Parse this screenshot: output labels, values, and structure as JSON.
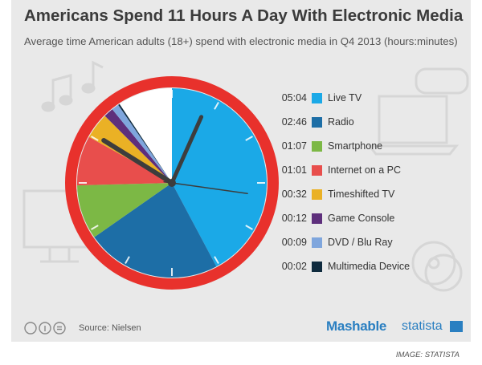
{
  "header": {
    "title": "Americans Spend 11 Hours A Day With Electronic Media",
    "subtitle": "Average time American adults (18+) spend with electronic media in Q4 2013 (hours:minutes)"
  },
  "chart_data": {
    "type": "pie",
    "title": "Americans Spend 11 Hours A Day With Electronic Media",
    "subtitle": "Average time American adults (18+) spend with electronic media in Q4 2013 (hours:minutes)",
    "unit": "minutes",
    "slices": [
      {
        "label": "Live TV",
        "time": "05:04",
        "minutes": 304,
        "color": "#1ba9e7"
      },
      {
        "label": "Radio",
        "time": "02:46",
        "minutes": 166,
        "color": "#1d6ea6"
      },
      {
        "label": "Smartphone",
        "time": "01:07",
        "minutes": 67,
        "color": "#7cb845"
      },
      {
        "label": "Internet on a PC",
        "time": "01:01",
        "minutes": 61,
        "color": "#e84e4c"
      },
      {
        "label": "Timeshifted TV",
        "time": "00:32",
        "minutes": 32,
        "color": "#eab125"
      },
      {
        "label": "Game Console",
        "time": "00:12",
        "minutes": 12,
        "color": "#5e2f7c"
      },
      {
        "label": "DVD / Blu Ray",
        "time": "00:09",
        "minutes": 9,
        "color": "#7fa6dd"
      },
      {
        "label": "Multimedia Device",
        "time": "00:02",
        "minutes": 2,
        "color": "#0f2b3e"
      }
    ],
    "total_minutes_of_clock": 720,
    "remaining_color": "#ffffff"
  },
  "footer": {
    "source": "Source: Nielsen",
    "brand1": "Mashable",
    "brand2": "statista",
    "credit": "IMAGE: STATISTA"
  },
  "colors": {
    "clock_rim": "#e8312c",
    "hands": "#3d3d3d",
    "brand": "#2a7fc1"
  }
}
